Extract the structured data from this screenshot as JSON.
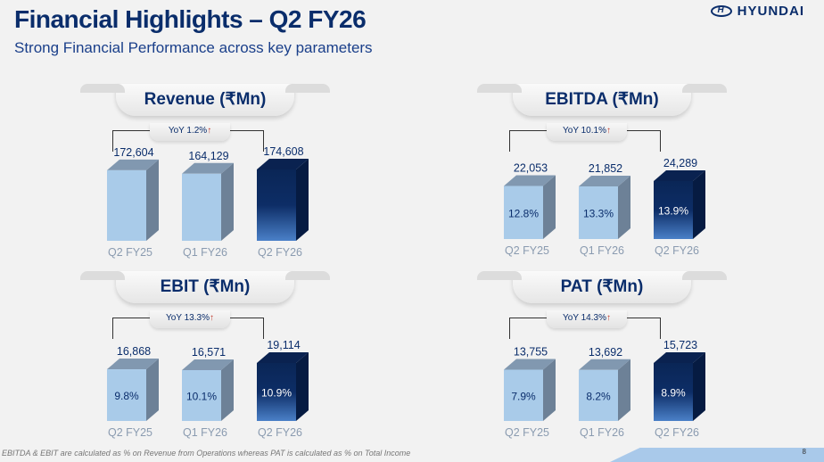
{
  "header": {
    "title": "Financial Highlights – Q2 FY26",
    "subtitle": "Strong Financial Performance across key parameters",
    "logo": "HYUNDAI"
  },
  "colors": {
    "light_bar": "#a9cbe9",
    "dark_bar": "#0a2656",
    "title": "#0a2d6b"
  },
  "chart_data": [
    {
      "type": "bar",
      "title": "Revenue (₹Mn)",
      "yoy": "YoY 1.2%",
      "yoy_arrow": "↑",
      "categories": [
        "Q2 FY25",
        "Q1 FY26",
        "Q2 FY26"
      ],
      "values": [
        172604,
        164129,
        174608
      ],
      "value_labels": [
        "172,604",
        "164,129",
        "174,608"
      ],
      "inner_labels": [
        "",
        "",
        ""
      ]
    },
    {
      "type": "bar",
      "title": "EBITDA (₹Mn)",
      "yoy": "YoY 10.1%",
      "yoy_arrow": "↑",
      "categories": [
        "Q2 FY25",
        "Q1 FY26",
        "Q2 FY26"
      ],
      "values": [
        22053,
        21852,
        24289
      ],
      "value_labels": [
        "22,053",
        "21,852",
        "24,289"
      ],
      "inner_labels": [
        "12.8%",
        "13.3%",
        "13.9%"
      ]
    },
    {
      "type": "bar",
      "title": "EBIT (₹Mn)",
      "yoy": "YoY 13.3%",
      "yoy_arrow": "↑",
      "categories": [
        "Q2 FY25",
        "Q1 FY26",
        "Q2 FY26"
      ],
      "values": [
        16868,
        16571,
        19114
      ],
      "value_labels": [
        "16,868",
        "16,571",
        "19,114"
      ],
      "inner_labels": [
        "9.8%",
        "10.1%",
        "10.9%"
      ]
    },
    {
      "type": "bar",
      "title": "PAT (₹Mn)",
      "yoy": "YoY 14.3%",
      "yoy_arrow": "↑",
      "categories": [
        "Q2 FY25",
        "Q1 FY26",
        "Q2 FY26"
      ],
      "values": [
        13755,
        13692,
        15723
      ],
      "value_labels": [
        "13,755",
        "13,692",
        "15,723"
      ],
      "inner_labels": [
        "7.9%",
        "8.2%",
        "8.9%"
      ]
    }
  ],
  "footer": {
    "note": "EBITDA & EBIT are calculated as % on Revenue from Operations whereas PAT is calculated as % on Total Income",
    "page": "8"
  }
}
